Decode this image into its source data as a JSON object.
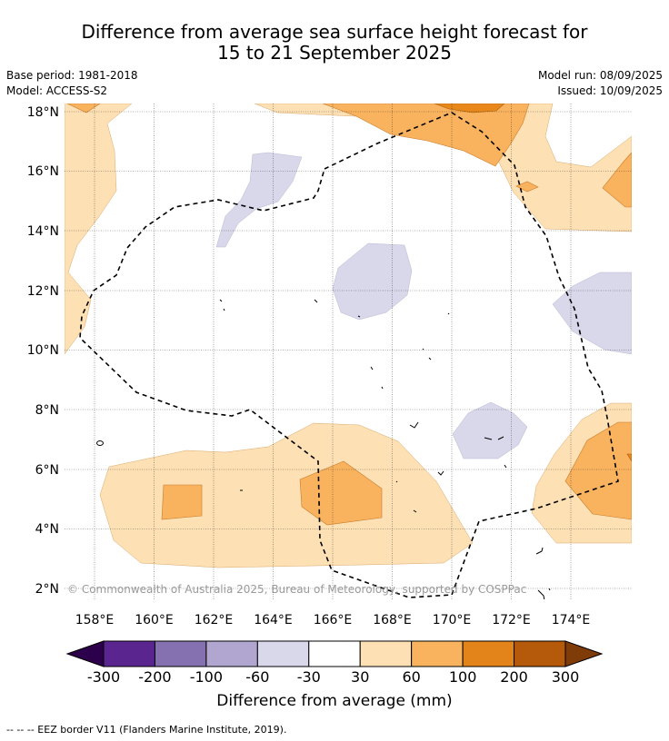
{
  "title": {
    "line1": "Difference from average sea surface height forecast for",
    "line2": "15 to 21 September 2025"
  },
  "meta": {
    "base_period": "Base period: 1981-2018",
    "model": "Model: ACCESS-S2",
    "model_run": "Model run: 08/09/2025",
    "issued": "Issued: 10/09/2025"
  },
  "map": {
    "lon_labels": [
      "158°E",
      "160°E",
      "162°E",
      "164°E",
      "166°E",
      "168°E",
      "170°E",
      "172°E",
      "174°E"
    ],
    "lat_labels": [
      "18°N",
      "16°N",
      "14°N",
      "12°N",
      "10°N",
      "8°N",
      "6°N",
      "4°N",
      "2°N"
    ],
    "copyright": "© Commonwealth of Australia 2025, Bureau of Meteorology, supported by COSPPac",
    "border_style": "dashed",
    "colors": {
      "light_orange": "#fde0b4",
      "mid_orange": "#f9b35f",
      "dark_orange": "#e8871a",
      "light_purple": "#d8d8ea"
    }
  },
  "colorbar": {
    "ticks": [
      "-300",
      "-200",
      "-100",
      "-60",
      "-30",
      "30",
      "60",
      "100",
      "200",
      "300"
    ],
    "colors": [
      "#5b2590",
      "#8571b0",
      "#b0a6d0",
      "#d8d8ea",
      "#ffffff",
      "#fde0b4",
      "#f9b35f",
      "#e2841a",
      "#b45a0a"
    ],
    "end_low": "#2d004b",
    "end_high": "#7f3b08",
    "label": "Difference from average (mm)"
  },
  "footnote": "-- -- -- EEZ border V11 (Flanders Marine Institute, 2019)."
}
